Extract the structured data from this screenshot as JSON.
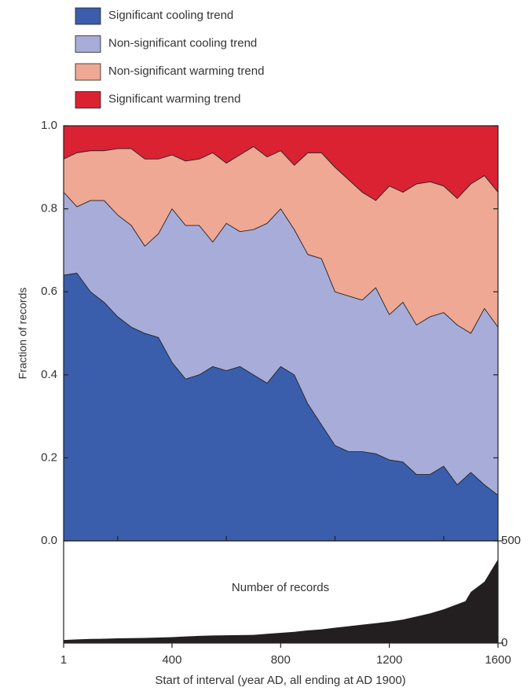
{
  "chart_data": [
    {
      "type": "stacked_area",
      "ylabel": "Fraction of records",
      "legend": true,
      "xlim": [
        1,
        1600
      ],
      "ylim": [
        0,
        1
      ],
      "yticks": [
        {
          "value": 0,
          "label": "0.0"
        },
        0.2,
        0.4,
        0.6,
        0.8,
        {
          "value": 1,
          "label": "1.0"
        }
      ],
      "x": [
        1,
        50,
        100,
        150,
        200,
        250,
        300,
        350,
        400,
        450,
        500,
        550,
        600,
        650,
        700,
        750,
        800,
        850,
        900,
        950,
        1000,
        1050,
        1100,
        1150,
        1200,
        1250,
        1300,
        1350,
        1400,
        1450,
        1500,
        1550,
        1600
      ],
      "series": [
        {
          "name": "Significant cooling trend",
          "color": "#3a5eab",
          "values": [
            0.64,
            0.645,
            0.6,
            0.575,
            0.54,
            0.515,
            0.5,
            0.49,
            0.43,
            0.39,
            0.4,
            0.42,
            0.41,
            0.42,
            0.4,
            0.38,
            0.42,
            0.4,
            0.33,
            0.28,
            0.23,
            0.215,
            0.215,
            0.21,
            0.195,
            0.19,
            0.16,
            0.16,
            0.18,
            0.135,
            0.165,
            0.135,
            0.11
          ]
        },
        {
          "name": "Non-significant cooling trend",
          "color": "#a7acd8",
          "values": [
            0.2,
            0.16,
            0.22,
            0.245,
            0.245,
            0.245,
            0.21,
            0.25,
            0.37,
            0.37,
            0.36,
            0.3,
            0.355,
            0.325,
            0.35,
            0.385,
            0.38,
            0.35,
            0.36,
            0.4,
            0.37,
            0.375,
            0.365,
            0.4,
            0.35,
            0.385,
            0.36,
            0.38,
            0.37,
            0.385,
            0.335,
            0.425,
            0.405
          ]
        },
        {
          "name": "Non-significant warming trend",
          "color": "#eea894",
          "values": [
            0.08,
            0.13,
            0.12,
            0.12,
            0.16,
            0.185,
            0.21,
            0.18,
            0.13,
            0.155,
            0.16,
            0.215,
            0.145,
            0.185,
            0.2,
            0.16,
            0.14,
            0.155,
            0.245,
            0.255,
            0.3,
            0.28,
            0.26,
            0.21,
            0.31,
            0.265,
            0.34,
            0.325,
            0.305,
            0.305,
            0.36,
            0.32,
            0.325
          ]
        },
        {
          "name": "Significant warming trend",
          "color": "#da2232",
          "values": [
            0.08,
            0.065,
            0.06,
            0.06,
            0.055,
            0.055,
            0.08,
            0.08,
            0.07,
            0.085,
            0.08,
            0.065,
            0.09,
            0.07,
            0.05,
            0.075,
            0.06,
            0.095,
            0.065,
            0.065,
            0.1,
            0.13,
            0.16,
            0.18,
            0.145,
            0.16,
            0.14,
            0.135,
            0.145,
            0.175,
            0.14,
            0.12,
            0.16
          ]
        }
      ]
    },
    {
      "type": "area",
      "annotation": "Number of records",
      "xlabel": "Start of interval (year AD, all ending at AD 1900)",
      "xlim": [
        1,
        1600
      ],
      "xticks": [
        1,
        400,
        800,
        1200,
        1600
      ],
      "xminor": [
        200,
        600,
        1000,
        1400
      ],
      "ylim": [
        0,
        500
      ],
      "yticks": [
        0,
        500
      ],
      "y_axis_side": "right",
      "color": "#231f20",
      "x": [
        1,
        50,
        100,
        150,
        200,
        250,
        300,
        350,
        400,
        450,
        500,
        550,
        600,
        650,
        700,
        750,
        800,
        850,
        900,
        950,
        1000,
        1050,
        1100,
        1150,
        1200,
        1250,
        1300,
        1350,
        1400,
        1450,
        1480,
        1500,
        1550,
        1600
      ],
      "values": [
        15,
        18,
        20,
        21,
        23,
        24,
        25,
        27,
        29,
        32,
        35,
        37,
        38,
        39,
        40,
        45,
        50,
        55,
        62,
        67,
        75,
        82,
        90,
        97,
        105,
        115,
        130,
        145,
        165,
        190,
        205,
        250,
        300,
        410
      ]
    }
  ]
}
